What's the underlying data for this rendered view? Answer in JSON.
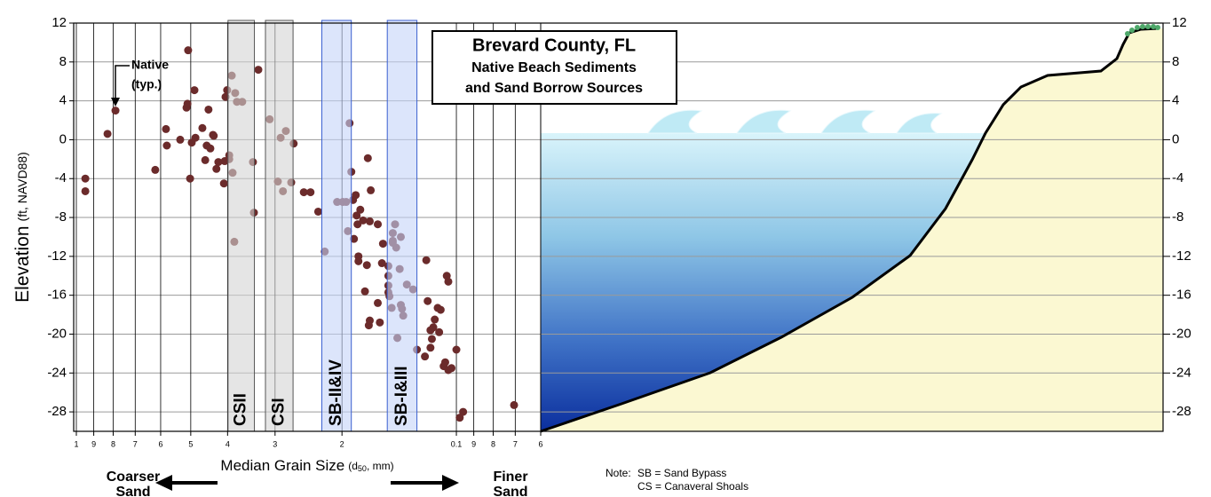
{
  "chart_data": {
    "type": "scatter",
    "title": "Brevard County, FL",
    "subtitle_lines": [
      "Native Beach Sediments",
      "and Sand Borrow Sources"
    ],
    "x_label": "Median Grain Size",
    "x_label_unit": {
      "prefix": "(d",
      "subscript": "50",
      "suffix": ", mm)"
    },
    "y_label": "Elevation",
    "y_label_unit": "(ft, NAVD88)",
    "x_log": true,
    "xlim": [
      1,
      0.06
    ],
    "xticks": [
      1,
      {
        "value": 0.9,
        "label": "9"
      },
      {
        "value": 0.8,
        "label": "8"
      },
      {
        "value": 0.7,
        "label": "7"
      },
      {
        "value": 0.6,
        "label": "6"
      },
      {
        "value": 0.5,
        "label": "5"
      },
      {
        "value": 0.4,
        "label": "4"
      },
      {
        "value": 0.3,
        "label": "3"
      },
      {
        "value": 0.2,
        "label": "2"
      },
      0.1,
      {
        "value": 0.09,
        "label": "9"
      },
      {
        "value": 0.08,
        "label": "8"
      },
      {
        "value": 0.07,
        "label": "7"
      },
      {
        "value": 0.06,
        "label": "6"
      }
    ],
    "ylim": [
      -30,
      12
    ],
    "yticks": [
      12,
      8,
      4,
      0,
      -4,
      -8,
      -12,
      -16,
      -20,
      -24,
      -28
    ],
    "y2lim": [
      -30,
      12
    ],
    "y2ticks": [
      12,
      8,
      4,
      0,
      -4,
      -8,
      -12,
      -16,
      -20,
      -24,
      -28
    ],
    "grid": true,
    "series": [
      {
        "name": "Native",
        "color": "#6b2b2b",
        "x": [
          0.947,
          0.947,
          0.828,
          0.789,
          0.62,
          0.581,
          0.578,
          0.533,
          0.513,
          0.51,
          0.508,
          0.502,
          0.497,
          0.489,
          0.486,
          0.466,
          0.458,
          0.454,
          0.449,
          0.444,
          0.437,
          0.435,
          0.428,
          0.423,
          0.409,
          0.407,
          0.405,
          0.401,
          0.396,
          0.396,
          0.388,
          0.39,
          0.384,
          0.382,
          0.378,
          0.366,
          0.343,
          0.341,
          0.332,
          0.31,
          0.295,
          0.29,
          0.286,
          0.281,
          0.272,
          0.268,
          0.252,
          0.242,
          0.231,
          0.222,
          0.206,
          0.199,
          0.195,
          0.193,
          0.191,
          0.189,
          0.187,
          0.186,
          0.184,
          0.183,
          0.182,
          0.181,
          0.181,
          0.179,
          0.176,
          0.174,
          0.172,
          0.171,
          0.17,
          0.169,
          0.169,
          0.168,
          0.161,
          0.161,
          0.159,
          0.157,
          0.156,
          0.151,
          0.151,
          0.151,
          0.151,
          0.15,
          0.148,
          0.147,
          0.147,
          0.147,
          0.145,
          0.144,
          0.143,
          0.141,
          0.14,
          0.14,
          0.139,
          0.138,
          0.135,
          0.13,
          0.127,
          0.121,
          0.12,
          0.119,
          0.117,
          0.117,
          0.116,
          0.115,
          0.114,
          0.112,
          0.111,
          0.11,
          0.108,
          0.107,
          0.106,
          0.105,
          0.105,
          0.103,
          0.1,
          0.098,
          0.096,
          0.0705
        ],
        "values": [
          -4.0,
          -5.3,
          0.6,
          3.0,
          -3.1,
          1.1,
          -0.6,
          0,
          3.3,
          3.7,
          9.2,
          -4.0,
          -0.3,
          5.1,
          0.2,
          1.2,
          -2.1,
          -0.6,
          3.1,
          -0.9,
          0.5,
          0.4,
          -3.0,
          -2.3,
          -4.5,
          -2.2,
          4.4,
          5.1,
          -2.0,
          -1.6,
          -3.4,
          6.6,
          -10.5,
          4.8,
          3.9,
          3.9,
          -2.3,
          -7.5,
          7.2,
          2.1,
          -4.3,
          0.2,
          -5.3,
          0.9,
          -4.4,
          -0.4,
          -5.4,
          -5.4,
          -7.4,
          -11.5,
          -6.4,
          -6.4,
          -6.4,
          -9.4,
          1.7,
          -3.3,
          -6.2,
          -10.2,
          -5.7,
          -7.8,
          -8.7,
          -12.0,
          -12.5,
          -7.2,
          -8.3,
          -15.6,
          -12.9,
          -1.9,
          -19.1,
          -18.6,
          -8.4,
          -5.2,
          -8.7,
          -16.8,
          -18.8,
          -12.7,
          -10.7,
          -13.0,
          -14.0,
          -15.0,
          -15.7,
          -16.1,
          -17.3,
          -10.4,
          -9.6,
          -10.6,
          -8.7,
          -11.1,
          -20.4,
          -13.3,
          -10.0,
          -17.0,
          -17.4,
          -18.1,
          -14.9,
          -15.4,
          -21.6,
          -22.3,
          -12.4,
          -16.6,
          -21.4,
          -19.6,
          -20.5,
          -19.3,
          -18.5,
          -17.3,
          -19.8,
          -17.5,
          -23.3,
          -22.9,
          -14.0,
          -14.6,
          -23.7,
          -23.5,
          -21.6,
          -28.6,
          -28.0,
          -27.3
        ]
      }
    ],
    "borrow_sources": [
      {
        "label": "CSII",
        "x": [
          0.399,
          0.34
        ],
        "color": "#d4d4d4",
        "label_color": "#000000"
      },
      {
        "label": "CSI",
        "x": [
          0.318,
          0.269
        ],
        "color": "#d4d4d4",
        "label_color": "#000000"
      },
      {
        "label": "SB-II&IV",
        "x": [
          0.226,
          0.189
        ],
        "color": "#c4d3f8",
        "label_color": "#1d3a9c"
      },
      {
        "label": "SB-I&III",
        "x": [
          0.152,
          0.127
        ],
        "color": "#c4d3f8",
        "label_color": "#1d3a9c"
      }
    ],
    "annotations": {
      "native_note": "(typ.)",
      "coarser": [
        "Coarser",
        "Sand"
      ],
      "finer": [
        "Finer",
        "Sand"
      ],
      "note": [
        "Note:",
        "SB = Sand Bypass",
        "CS = Canaveral Shoals"
      ]
    }
  }
}
